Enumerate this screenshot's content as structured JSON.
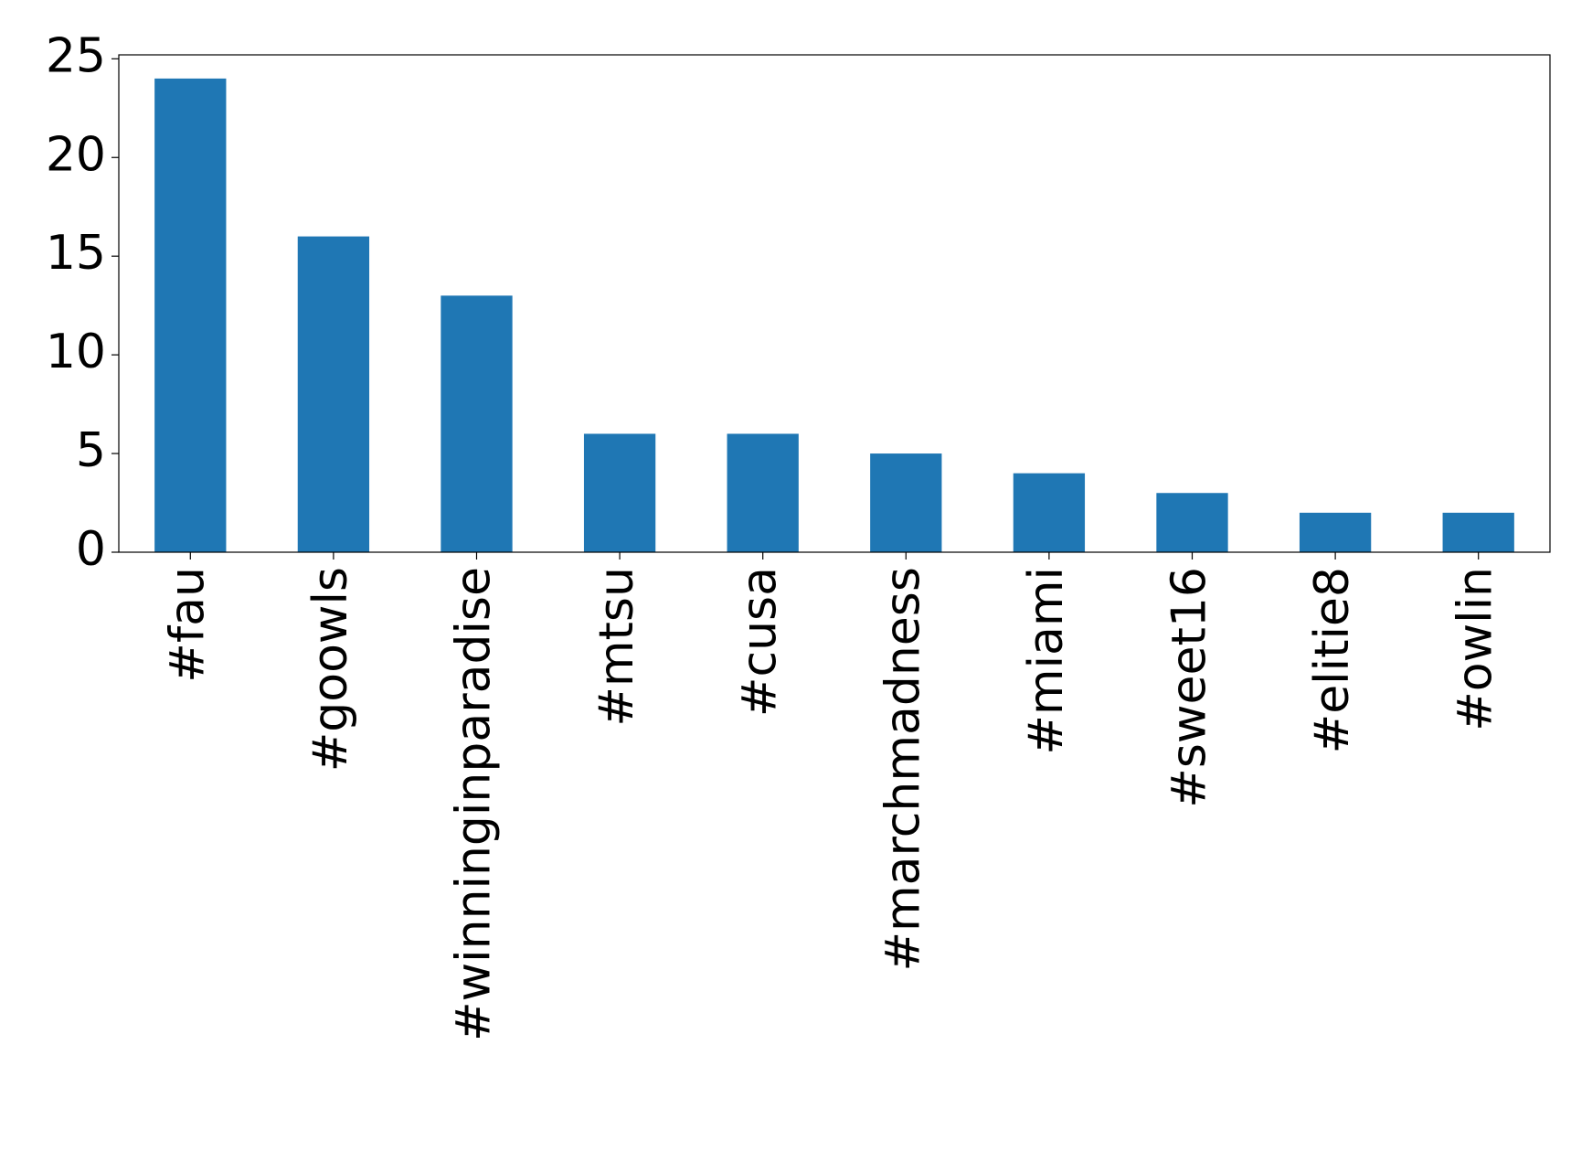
{
  "chart_data": {
    "type": "bar",
    "categories": [
      "#fau",
      "#goowls",
      "#winninginparadise",
      "#mtsu",
      "#cusa",
      "#marchmadness",
      "#miami",
      "#sweet16",
      "#elitie8",
      "#owlin"
    ],
    "values": [
      24,
      16,
      13,
      6,
      6,
      5,
      4,
      3,
      2,
      2
    ],
    "color": "#1f77b4",
    "ylim": [
      0,
      25.2
    ],
    "yticks": [
      0,
      5,
      10,
      15,
      20,
      25
    ],
    "grid": false
  }
}
